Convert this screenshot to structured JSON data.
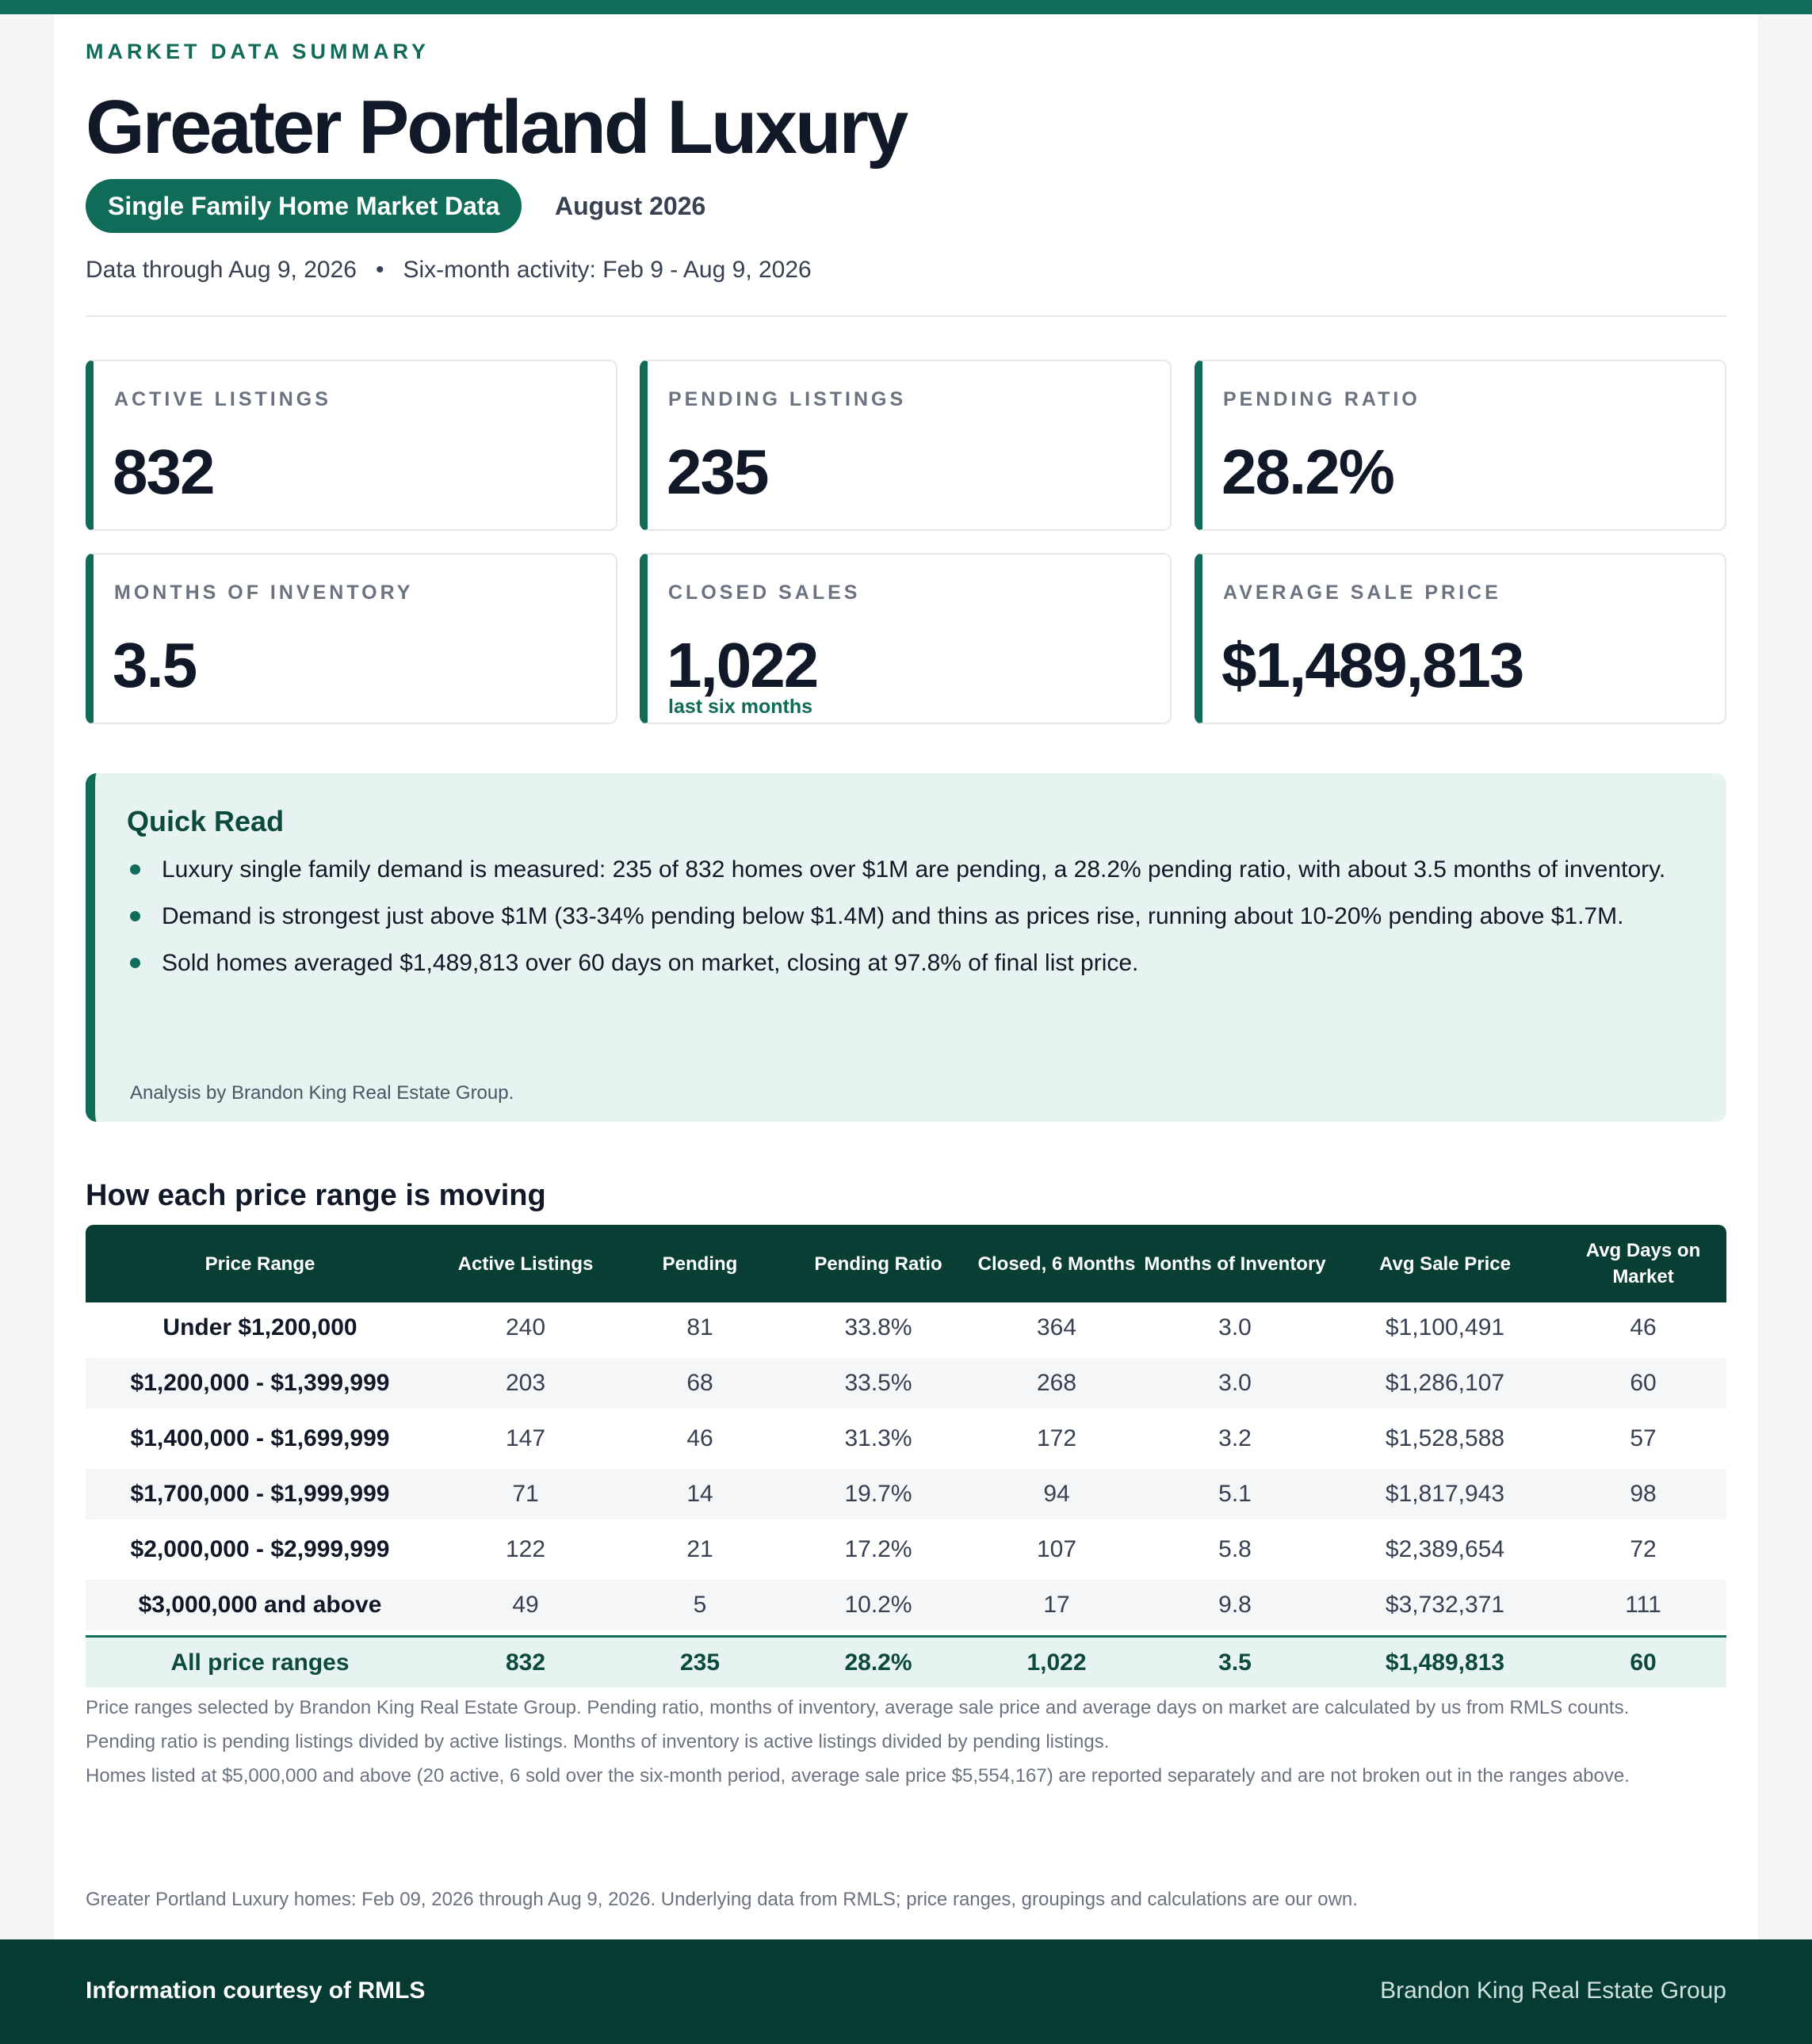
{
  "header": {
    "eyebrow": "MARKET DATA SUMMARY",
    "title": "Greater Portland Luxury",
    "pill": "Single Family Home Market Data",
    "period": "August 2026",
    "data_through": "Data through Aug 9, 2026",
    "separator": "•",
    "activity": "Six-month activity: Feb 9 - Aug 9, 2026"
  },
  "kpis": [
    {
      "label": "ACTIVE LISTINGS",
      "value": "832"
    },
    {
      "label": "PENDING LISTINGS",
      "value": "235"
    },
    {
      "label": "PENDING RATIO",
      "value": "28.2%"
    },
    {
      "label": "MONTHS OF INVENTORY",
      "value": "3.5"
    },
    {
      "label": "CLOSED SALES",
      "value": "1,022",
      "sub": "last six months"
    },
    {
      "label": "AVERAGE SALE PRICE",
      "value": "$1,489,813"
    }
  ],
  "quick_read": {
    "title": "Quick Read",
    "bullets": [
      "Luxury single family demand is measured: 235 of 832 homes over $1M are pending, a 28.2% pending ratio, with about 3.5 months of inventory.",
      "Demand is strongest just above $1M (33-34% pending below $1.4M) and thins as prices rise, running about 10-20% pending above $1.7M.",
      "Sold homes averaged $1,489,813 over 60 days on market, closing at 97.8% of final list price."
    ],
    "credit": "Analysis by Brandon King Real Estate Group."
  },
  "table": {
    "title": "How each price range is moving",
    "headers": [
      "Price Range",
      "Active Listings",
      "Pending",
      "Pending Ratio",
      "Closed, 6 Months",
      "Months of Inventory",
      "Avg Sale Price",
      "Avg Days on Market"
    ],
    "rows": [
      [
        "Under $1,200,000",
        "240",
        "81",
        "33.8%",
        "364",
        "3.0",
        "$1,100,491",
        "46"
      ],
      [
        "$1,200,000 - $1,399,999",
        "203",
        "68",
        "33.5%",
        "268",
        "3.0",
        "$1,286,107",
        "60"
      ],
      [
        "$1,400,000 - $1,699,999",
        "147",
        "46",
        "31.3%",
        "172",
        "3.2",
        "$1,528,588",
        "57"
      ],
      [
        "$1,700,000 - $1,999,999",
        "71",
        "14",
        "19.7%",
        "94",
        "5.1",
        "$1,817,943",
        "98"
      ],
      [
        "$2,000,000 - $2,999,999",
        "122",
        "21",
        "17.2%",
        "107",
        "5.8",
        "$2,389,654",
        "72"
      ],
      [
        "$3,000,000 and above",
        "49",
        "5",
        "10.2%",
        "17",
        "9.8",
        "$3,732,371",
        "111"
      ]
    ],
    "total": [
      "All price ranges",
      "832",
      "235",
      "28.2%",
      "1,022",
      "3.5",
      "$1,489,813",
      "60"
    ]
  },
  "notes": [
    "Price ranges selected by Brandon King Real Estate Group. Pending ratio, months of inventory, average sale price and average days on market are calculated by us from RMLS counts.",
    "Pending ratio is pending listings divided by active listings. Months of inventory is active listings divided by pending listings.",
    "Homes listed at $5,000,000 and above (20 active, 6 sold over the six-month period, average sale price $5,554,167) are reported separately and are not broken out in the ranges above."
  ],
  "source_note": "Greater Portland Luxury homes: Feb 09, 2026 through Aug 9, 2026. Underlying data from RMLS; price ranges, groupings and calculations are our own.",
  "footer": {
    "left": "Information courtesy of RMLS",
    "right": "Brandon King Real Estate Group"
  },
  "colors": {
    "accent": "#106b58",
    "dark_green": "#083e34",
    "tint": "#e6f3f0"
  }
}
